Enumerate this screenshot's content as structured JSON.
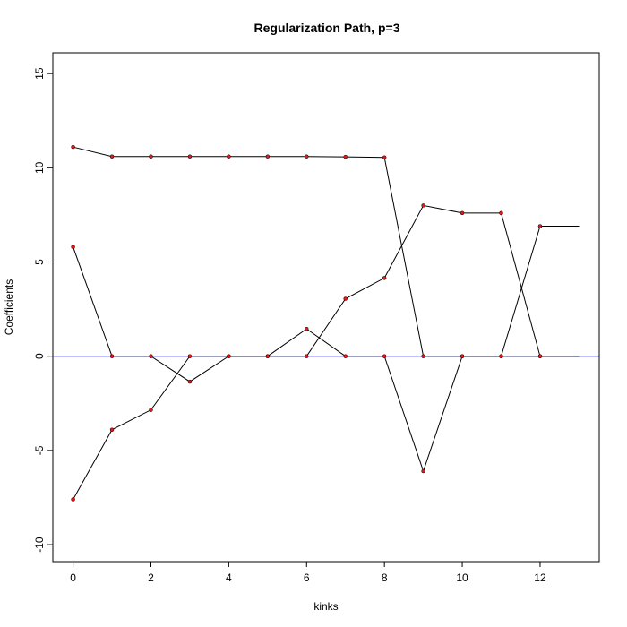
{
  "chart_data": {
    "type": "line",
    "title": "Regularization Path, p=3",
    "xlabel": "kinks",
    "ylabel": "Coefficients",
    "xlim": [
      -0.52,
      13.52
    ],
    "ylim": [
      -10.9,
      16.1
    ],
    "x_ticks": [
      0,
      2,
      4,
      6,
      8,
      10,
      12
    ],
    "y_ticks": [
      -10,
      -5,
      0,
      5,
      10,
      15
    ],
    "grid": false,
    "legend": "none",
    "series": [
      {
        "x": [
          0,
          1,
          2,
          3,
          4,
          5,
          6,
          7,
          8,
          9,
          10,
          11,
          12,
          13
        ],
        "values": [
          11.1,
          10.6,
          10.6,
          10.6,
          10.6,
          10.6,
          10.6,
          10.58,
          10.55,
          0,
          0,
          0,
          0,
          0
        ]
      },
      {
        "x": [
          0,
          1,
          2,
          3,
          4,
          5,
          6,
          7,
          8,
          9,
          10,
          11,
          12,
          13
        ],
        "values": [
          5.8,
          0,
          0,
          -1.35,
          0,
          0,
          1.45,
          0,
          0,
          -6.1,
          0,
          0,
          6.9,
          6.9
        ]
      },
      {
        "x": [
          0,
          1,
          2,
          3,
          4,
          5,
          6,
          7,
          8,
          9,
          10,
          11,
          12,
          13
        ],
        "values": [
          -7.6,
          -3.9,
          -2.85,
          0,
          0,
          0,
          0,
          3.05,
          4.15,
          8.0,
          7.6,
          7.6,
          0,
          0
        ]
      }
    ],
    "point_color": "#e31a1c",
    "line_color": "#000000",
    "zero_line_color": "#0000ff"
  }
}
